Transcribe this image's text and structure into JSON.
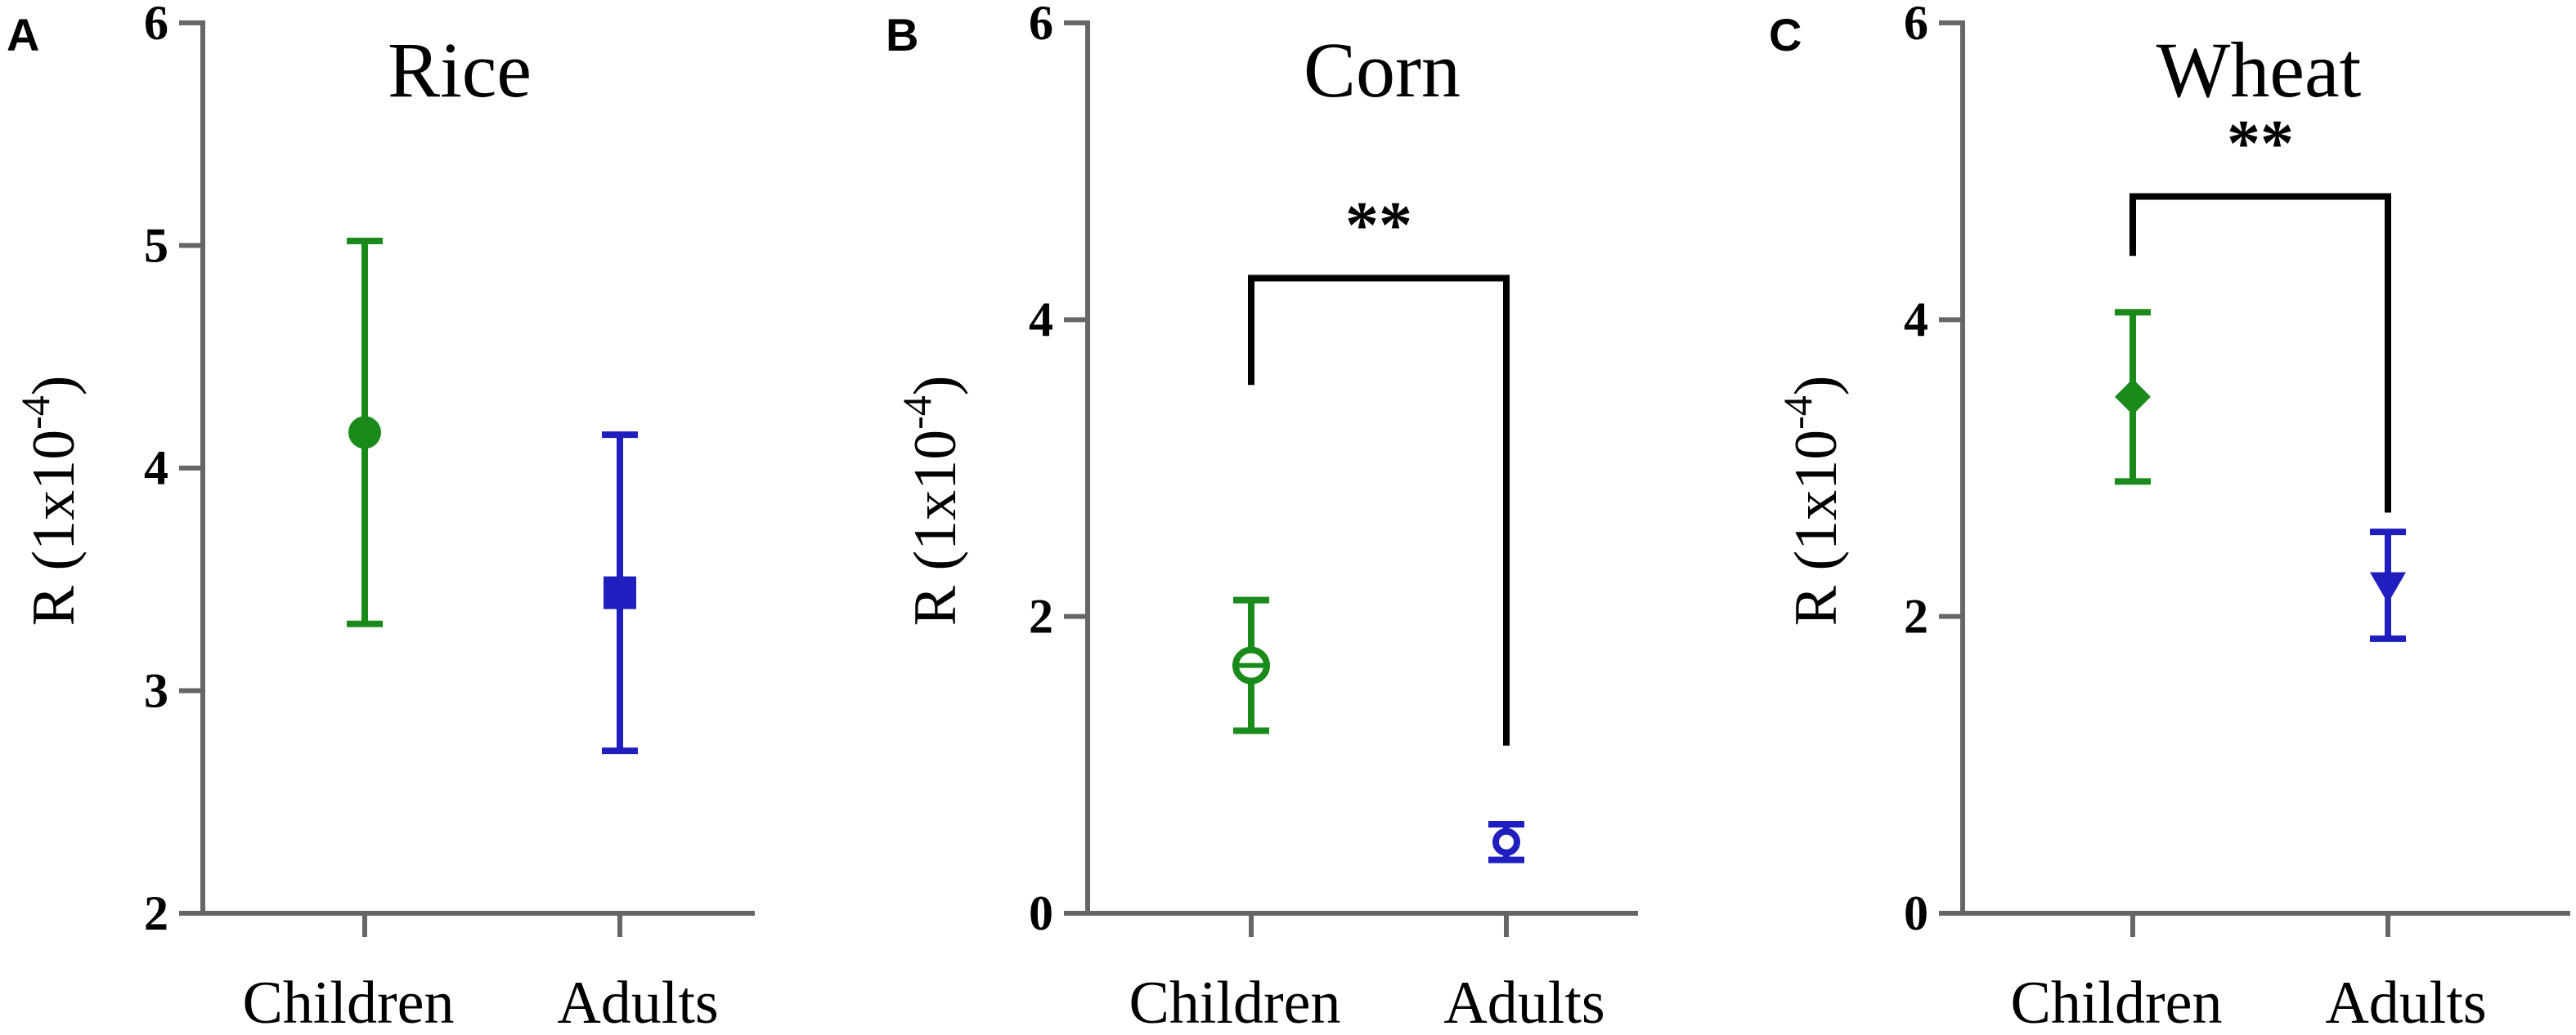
{
  "chart_data": [
    {
      "type": "scatter",
      "panel_label": "A",
      "title": "Rice",
      "ylabel": "R (1x10",
      "ylabel_sup": "-4",
      "ylabel_close": ")",
      "ylim": [
        2,
        6
      ],
      "yticks": [
        2,
        3,
        4,
        5,
        6
      ],
      "categories": [
        "Children",
        "Adults"
      ],
      "series": [
        {
          "category": "Children",
          "mean": 4.16,
          "lower": 3.3,
          "upper": 5.02,
          "color": "#1a8a1a",
          "marker": "filled-circle"
        },
        {
          "category": "Adults",
          "mean": 3.44,
          "lower": 2.73,
          "upper": 4.15,
          "color": "#1f1fbf",
          "marker": "filled-square"
        }
      ],
      "significance": null
    },
    {
      "type": "scatter",
      "panel_label": "B",
      "title": "Corn",
      "ylabel": "R (1x10",
      "ylabel_sup": "-4",
      "ylabel_close": ")",
      "ylim": [
        0,
        6
      ],
      "yticks": [
        0,
        2,
        4,
        6
      ],
      "categories": [
        "Children",
        "Adults"
      ],
      "series": [
        {
          "category": "Children",
          "mean": 1.67,
          "lower": 1.23,
          "upper": 2.11,
          "color": "#1a8a1a",
          "marker": "circle-cross"
        },
        {
          "category": "Adults",
          "mean": 0.48,
          "lower": 0.36,
          "upper": 0.6,
          "color": "#1f1fbf",
          "marker": "open-circle"
        }
      ],
      "significance": {
        "label": "**",
        "bar_y": 4.28,
        "left_y": 3.56,
        "right_y": 1.13
      }
    },
    {
      "type": "scatter",
      "panel_label": "C",
      "title": "Wheat",
      "ylabel": "R (1x10",
      "ylabel_sup": "-4",
      "ylabel_close": ")",
      "ylim": [
        0,
        6
      ],
      "yticks": [
        0,
        2,
        4,
        6
      ],
      "categories": [
        "Children",
        "Adults"
      ],
      "series": [
        {
          "category": "Children",
          "mean": 3.48,
          "lower": 2.91,
          "upper": 4.05,
          "color": "#1a8a1a",
          "marker": "filled-diamond"
        },
        {
          "category": "Adults",
          "mean": 2.21,
          "lower": 1.85,
          "upper": 2.57,
          "color": "#1f1fbf",
          "marker": "filled-triangle-down"
        }
      ],
      "significance": {
        "label": "**",
        "bar_y": 4.83,
        "left_y": 4.43,
        "right_y": 2.7
      }
    }
  ]
}
